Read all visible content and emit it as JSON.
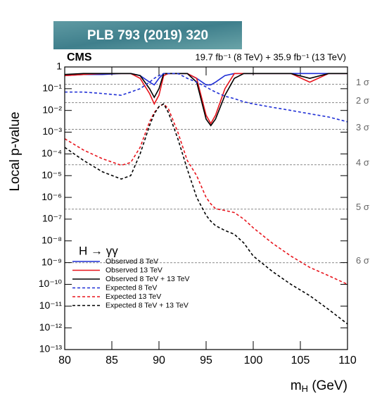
{
  "banner": "PLB 793 (2019) 320",
  "chart_data": {
    "type": "line",
    "title": "CMS",
    "subtitle": "19.7 fb⁻¹ (8 TeV) + 35.9 fb⁻¹ (13 TeV)",
    "annotation": "H → γγ",
    "y_label": "Local p-value",
    "x_label": {
      "main": "m",
      "sub": "H",
      "unit": " (GeV)"
    },
    "log_y": true,
    "xlim": [
      80,
      110
    ],
    "xticks": [
      80,
      85,
      90,
      95,
      100,
      105,
      110
    ],
    "ylim": [
      1e-13,
      1
    ],
    "yticks": [
      {
        "value": 1e-13,
        "label": "10⁻¹³"
      },
      {
        "value": 1e-12,
        "label": "10⁻¹²"
      },
      {
        "value": 1e-11,
        "label": "10⁻¹¹"
      },
      {
        "value": 1e-10,
        "label": "10⁻¹⁰"
      },
      {
        "value": 1e-09,
        "label": "10⁻⁹"
      },
      {
        "value": 1e-08,
        "label": "10⁻⁸"
      },
      {
        "value": 1e-07,
        "label": "10⁻⁷"
      },
      {
        "value": 1e-06,
        "label": "10⁻⁶"
      },
      {
        "value": 1e-05,
        "label": "10⁻⁵"
      },
      {
        "value": 0.0001,
        "label": "10⁻⁴"
      },
      {
        "value": 0.001,
        "label": "10⁻³"
      },
      {
        "value": 0.01,
        "label": "10⁻²"
      },
      {
        "value": 0.1,
        "label": "10⁻¹"
      },
      1
    ],
    "sigma_lines": [
      {
        "value": 0.1587,
        "label": "1 σ"
      },
      {
        "value": 0.0228,
        "label": "2 σ"
      },
      {
        "value": 0.00135,
        "label": "3 σ"
      },
      {
        "value": 3.17e-05,
        "label": "4 σ"
      },
      {
        "value": 2.87e-07,
        "label": "5 σ"
      },
      {
        "value": 9.87e-10,
        "label": "6 σ"
      }
    ],
    "x": [
      80,
      82,
      84,
      86,
      87,
      88,
      89,
      89.5,
      90,
      90.5,
      91,
      92,
      93,
      94,
      95,
      95.5,
      96,
      97,
      98,
      99,
      100,
      102,
      104,
      106,
      108,
      110
    ],
    "series": [
      {
        "name": "Observed 8 TeV",
        "color": "#1f2fd6",
        "dash": false,
        "values": [
          0.4,
          0.45,
          0.45,
          0.5,
          0.5,
          0.4,
          0.2,
          0.15,
          0.3,
          0.5,
          0.5,
          0.5,
          0.5,
          0.3,
          0.15,
          0.15,
          0.2,
          0.4,
          0.5,
          0.5,
          0.5,
          0.5,
          0.5,
          0.5,
          0.5,
          0.5
        ]
      },
      {
        "name": "Observed 13 TeV",
        "color": "#e8141c",
        "dash": false,
        "values": [
          0.4,
          0.45,
          0.5,
          0.5,
          0.5,
          0.3,
          0.06,
          0.02,
          0.05,
          0.4,
          0.5,
          0.5,
          0.5,
          0.3,
          0.006,
          0.0025,
          0.006,
          0.1,
          0.5,
          0.5,
          0.5,
          0.5,
          0.5,
          0.2,
          0.5,
          0.5
        ]
      },
      {
        "name": "Observed 8 TeV + 13 TeV",
        "color": "#000000",
        "dash": false,
        "values": [
          0.45,
          0.5,
          0.5,
          0.5,
          0.5,
          0.4,
          0.1,
          0.04,
          0.1,
          0.5,
          0.5,
          0.5,
          0.5,
          0.2,
          0.004,
          0.002,
          0.004,
          0.05,
          0.3,
          0.5,
          0.5,
          0.5,
          0.5,
          0.3,
          0.5,
          0.5
        ]
      },
      {
        "name": "Expected 8 TeV",
        "color": "#1f2fd6",
        "dash": true,
        "values": [
          0.07,
          0.07,
          0.06,
          0.05,
          0.07,
          0.1,
          0.2,
          0.3,
          0.4,
          0.5,
          0.5,
          0.5,
          0.3,
          0.2,
          0.12,
          0.09,
          0.07,
          0.045,
          0.035,
          0.025,
          0.02,
          0.014,
          0.01,
          0.007,
          0.005,
          0.003
        ]
      },
      {
        "name": "Expected 13 TeV",
        "color": "#e8141c",
        "dash": true,
        "values": [
          0.0005,
          0.00015,
          6e-05,
          3e-05,
          4e-05,
          0.0002,
          0.003,
          0.008,
          0.015,
          0.02,
          0.012,
          0.001,
          5e-05,
          1e-05,
          1e-06,
          5e-07,
          3e-07,
          2.5e-07,
          2e-07,
          1e-07,
          4e-08,
          8e-09,
          2e-09,
          6e-10,
          2.5e-10,
          1e-10
        ]
      },
      {
        "name": "Expected 8 TeV + 13 TeV",
        "color": "#000000",
        "dash": true,
        "values": [
          0.0002,
          5e-05,
          1.5e-05,
          7e-06,
          1e-05,
          0.0001,
          0.002,
          0.007,
          0.015,
          0.02,
          0.008,
          0.0005,
          2e-05,
          1e-06,
          1.5e-07,
          8e-08,
          5e-08,
          3e-08,
          2e-08,
          8e-09,
          2e-09,
          4e-10,
          1e-10,
          3e-11,
          7e-12,
          1.5e-12
        ]
      }
    ]
  }
}
